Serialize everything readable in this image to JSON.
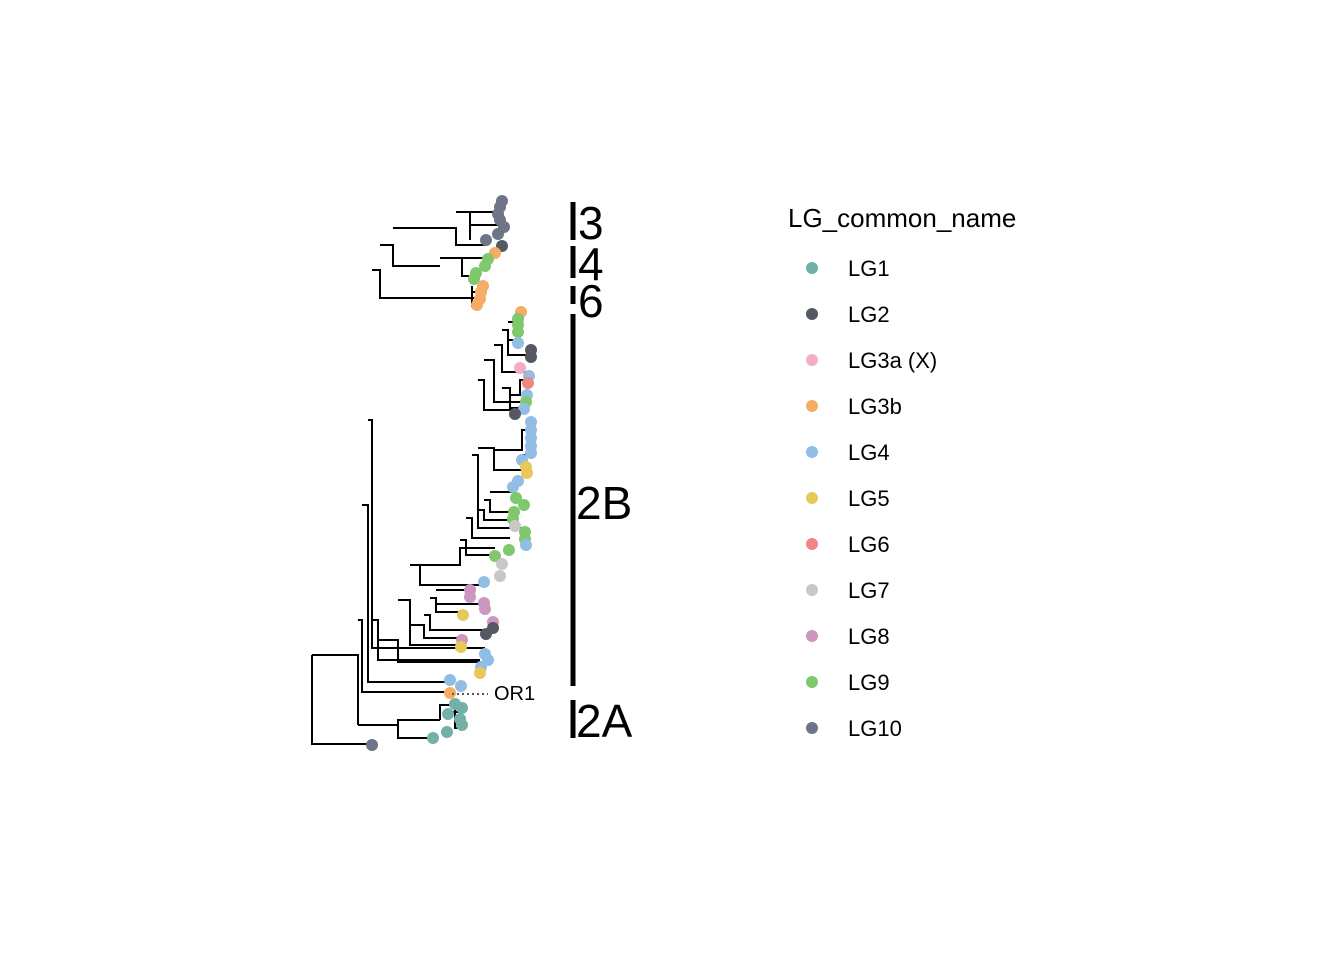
{
  "legend": {
    "title": "LG_common_name",
    "items": [
      {
        "label": "LG1",
        "color": "#74B0A8"
      },
      {
        "label": "LG2",
        "color": "#545863"
      },
      {
        "label": "LG3a (X)",
        "color": "#F4ADC7"
      },
      {
        "label": "LG3b",
        "color": "#F6AC64"
      },
      {
        "label": "LG4",
        "color": "#92BEE4"
      },
      {
        "label": "LG5",
        "color": "#E9C85A"
      },
      {
        "label": "LG6",
        "color": "#EF8584"
      },
      {
        "label": "LG7",
        "color": "#C8C8C8"
      },
      {
        "label": "LG8",
        "color": "#C997BF"
      },
      {
        "label": "LG9",
        "color": "#7FC86E"
      },
      {
        "label": "LG10",
        "color": "#6E7588"
      }
    ]
  },
  "clades": [
    {
      "label": "3"
    },
    {
      "label": "4"
    },
    {
      "label": "6"
    },
    {
      "label": "2B"
    },
    {
      "label": "2A"
    }
  ],
  "tip_label": "OR1"
}
